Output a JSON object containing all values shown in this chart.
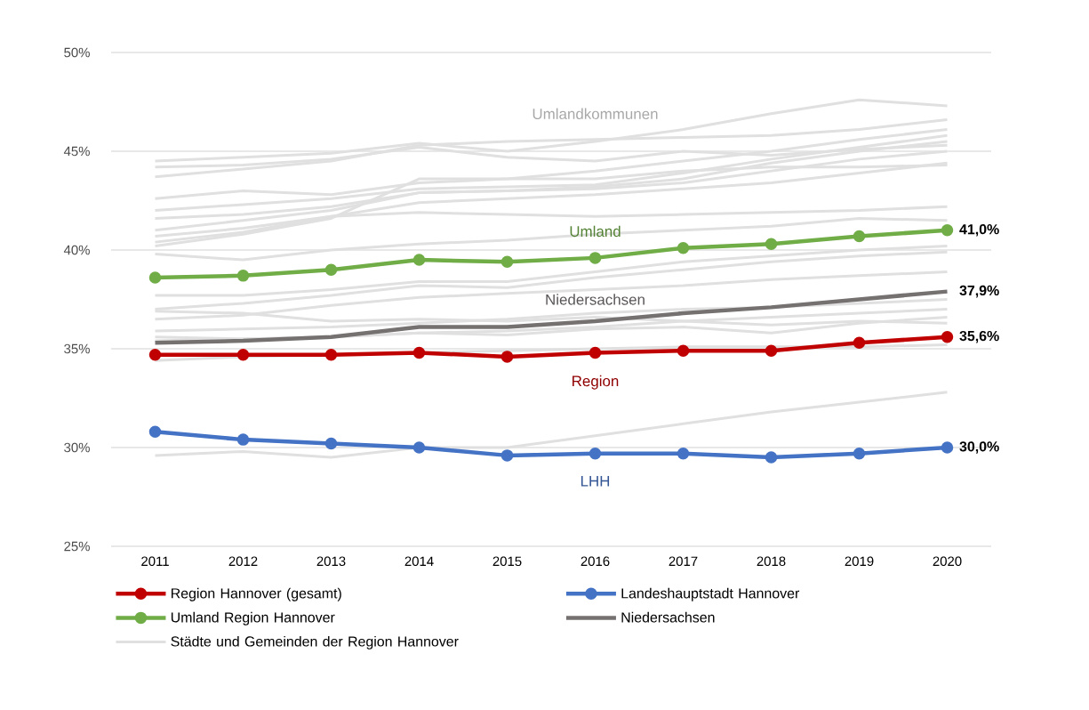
{
  "chart_data": {
    "type": "line",
    "categories": [
      "2011",
      "2012",
      "2013",
      "2014",
      "2015",
      "2016",
      "2017",
      "2018",
      "2019",
      "2020"
    ],
    "ylim": [
      25,
      50
    ],
    "yticks": [
      {
        "value": 25,
        "label": "25%"
      },
      {
        "value": 30,
        "label": "30%"
      },
      {
        "value": 35,
        "label": "35%"
      },
      {
        "value": 40,
        "label": "40%"
      },
      {
        "value": 45,
        "label": "45%"
      },
      {
        "value": 50,
        "label": "50%"
      }
    ],
    "grid": "y",
    "legend": "bottom",
    "annotations": [
      "Umlandkommunen",
      "Umland",
      "Niedersachsen",
      "Region",
      "LHH"
    ],
    "series": [
      {
        "name": "Region Hannover (gesamt)",
        "color": "#c00000",
        "marker": "circle",
        "values": [
          34.7,
          34.7,
          34.7,
          34.8,
          34.6,
          34.8,
          34.9,
          34.9,
          35.3,
          35.6
        ],
        "value_labels": [
          null,
          null,
          null,
          null,
          null,
          null,
          null,
          null,
          null,
          "35,6%"
        ]
      },
      {
        "name": "Landeshauptstadt Hannover",
        "color": "#4472c4",
        "marker": "circle",
        "values": [
          30.8,
          30.4,
          30.2,
          30.0,
          29.6,
          29.7,
          29.7,
          29.5,
          29.7,
          30.0
        ],
        "value_labels": [
          null,
          null,
          null,
          null,
          null,
          null,
          null,
          null,
          null,
          "30,0%"
        ]
      },
      {
        "name": "Umland Region Hannover",
        "color": "#70ad47",
        "marker": "circle",
        "values": [
          38.6,
          38.7,
          39.0,
          39.5,
          39.4,
          39.6,
          40.1,
          40.3,
          40.7,
          41.0
        ],
        "value_labels": [
          null,
          null,
          null,
          null,
          null,
          null,
          null,
          null,
          null,
          "41,0%"
        ]
      },
      {
        "name": "Niedersachsen",
        "color": "#767171",
        "marker": "none",
        "values": [
          35.3,
          35.4,
          35.6,
          36.1,
          36.1,
          36.4,
          36.8,
          37.1,
          37.5,
          37.9
        ],
        "value_labels": [
          null,
          null,
          null,
          null,
          null,
          null,
          null,
          null,
          null,
          "37,9%"
        ]
      },
      {
        "name": "Städte und Gemeinden der Region Hannover",
        "color": "#e0e0e0",
        "marker": "none",
        "values": [
          44.5,
          44.7,
          44.9,
          45.4,
          45.0,
          45.5,
          46.1,
          46.9,
          47.6,
          47.3
        ]
      },
      {
        "color": "#e0e0e0",
        "marker": "none",
        "values": [
          43.7,
          44.1,
          44.5,
          45.3,
          45.5,
          45.6,
          45.7,
          45.8,
          46.1,
          46.6
        ]
      },
      {
        "color": "#e0e0e0",
        "marker": "none",
        "values": [
          42.6,
          43.0,
          42.8,
          43.4,
          43.6,
          44.0,
          44.5,
          45.0,
          45.6,
          46.1
        ]
      },
      {
        "color": "#e0e0e0",
        "marker": "none",
        "values": [
          42.0,
          42.3,
          42.6,
          43.1,
          43.2,
          43.3,
          43.9,
          44.6,
          45.2,
          45.8
        ]
      },
      {
        "color": "#e0e0e0",
        "marker": "none",
        "values": [
          41.6,
          41.8,
          42.2,
          42.9,
          43.0,
          43.2,
          43.6,
          44.4,
          45.0,
          45.5
        ]
      },
      {
        "color": "#e0e0e0",
        "marker": "none",
        "values": [
          41.0,
          41.5,
          42.0,
          42.9,
          43.0,
          43.1,
          43.4,
          44.0,
          44.6,
          45.0
        ]
      },
      {
        "color": "#e0e0e0",
        "marker": "none",
        "values": [
          40.7,
          41.1,
          41.7,
          42.4,
          42.6,
          42.8,
          43.1,
          43.4,
          43.9,
          44.4
        ]
      },
      {
        "color": "#e0e0e0",
        "marker": "none",
        "values": [
          40.4,
          40.9,
          41.7,
          41.9,
          41.8,
          41.7,
          41.8,
          41.9,
          42.0,
          42.2
        ]
      },
      {
        "color": "#e0e0e0",
        "marker": "none",
        "values": [
          40.2,
          40.8,
          41.6,
          43.6,
          43.6,
          43.6,
          44.0,
          44.2,
          44.2,
          44.3
        ]
      },
      {
        "color": "#e0e0e0",
        "marker": "none",
        "values": [
          44.2,
          44.3,
          44.6,
          45.2,
          44.7,
          44.5,
          45.0,
          44.8,
          45.1,
          45.3
        ]
      },
      {
        "color": "#e0e0e0",
        "marker": "none",
        "values": [
          39.8,
          39.5,
          40.0,
          40.3,
          40.5,
          40.8,
          41.0,
          41.2,
          41.6,
          41.5
        ]
      },
      {
        "color": "#e0e0e0",
        "marker": "none",
        "values": [
          37.7,
          37.7,
          38.0,
          38.4,
          38.4,
          38.9,
          39.4,
          39.7,
          40.0,
          40.2
        ]
      },
      {
        "color": "#e0e0e0",
        "marker": "none",
        "values": [
          37.0,
          37.3,
          37.7,
          38.2,
          38.1,
          38.6,
          39.0,
          39.4,
          39.7,
          39.9
        ]
      },
      {
        "color": "#e0e0e0",
        "marker": "none",
        "values": [
          36.5,
          36.7,
          37.2,
          37.6,
          37.8,
          38.0,
          38.2,
          38.5,
          38.7,
          38.9
        ]
      },
      {
        "color": "#e0e0e0",
        "marker": "none",
        "values": [
          36.9,
          36.8,
          36.4,
          36.5,
          36.4,
          36.6,
          36.4,
          36.2,
          36.4,
          36.3
        ]
      },
      {
        "color": "#e0e0e0",
        "marker": "none",
        "values": [
          35.9,
          36.0,
          36.1,
          36.3,
          36.5,
          36.8,
          37.0,
          37.1,
          37.3,
          37.5
        ]
      },
      {
        "color": "#e0e0e0",
        "marker": "none",
        "values": [
          35.6,
          35.5,
          35.6,
          35.8,
          35.9,
          36.1,
          36.4,
          36.6,
          36.8,
          37.0
        ]
      },
      {
        "color": "#e0e0e0",
        "marker": "none",
        "values": [
          35.4,
          35.5,
          35.6,
          35.8,
          35.7,
          36.0,
          36.1,
          35.8,
          36.3,
          36.6
        ]
      },
      {
        "color": "#e0e0e0",
        "marker": "none",
        "values": [
          34.4,
          34.6,
          34.7,
          34.8,
          34.9,
          35.0,
          35.1,
          35.1,
          35.1,
          35.2
        ]
      },
      {
        "color": "#e0e0e0",
        "marker": "none",
        "values": [
          29.6,
          29.8,
          29.5,
          30.0,
          30.0,
          30.6,
          31.2,
          31.8,
          32.3,
          32.8
        ]
      }
    ]
  }
}
